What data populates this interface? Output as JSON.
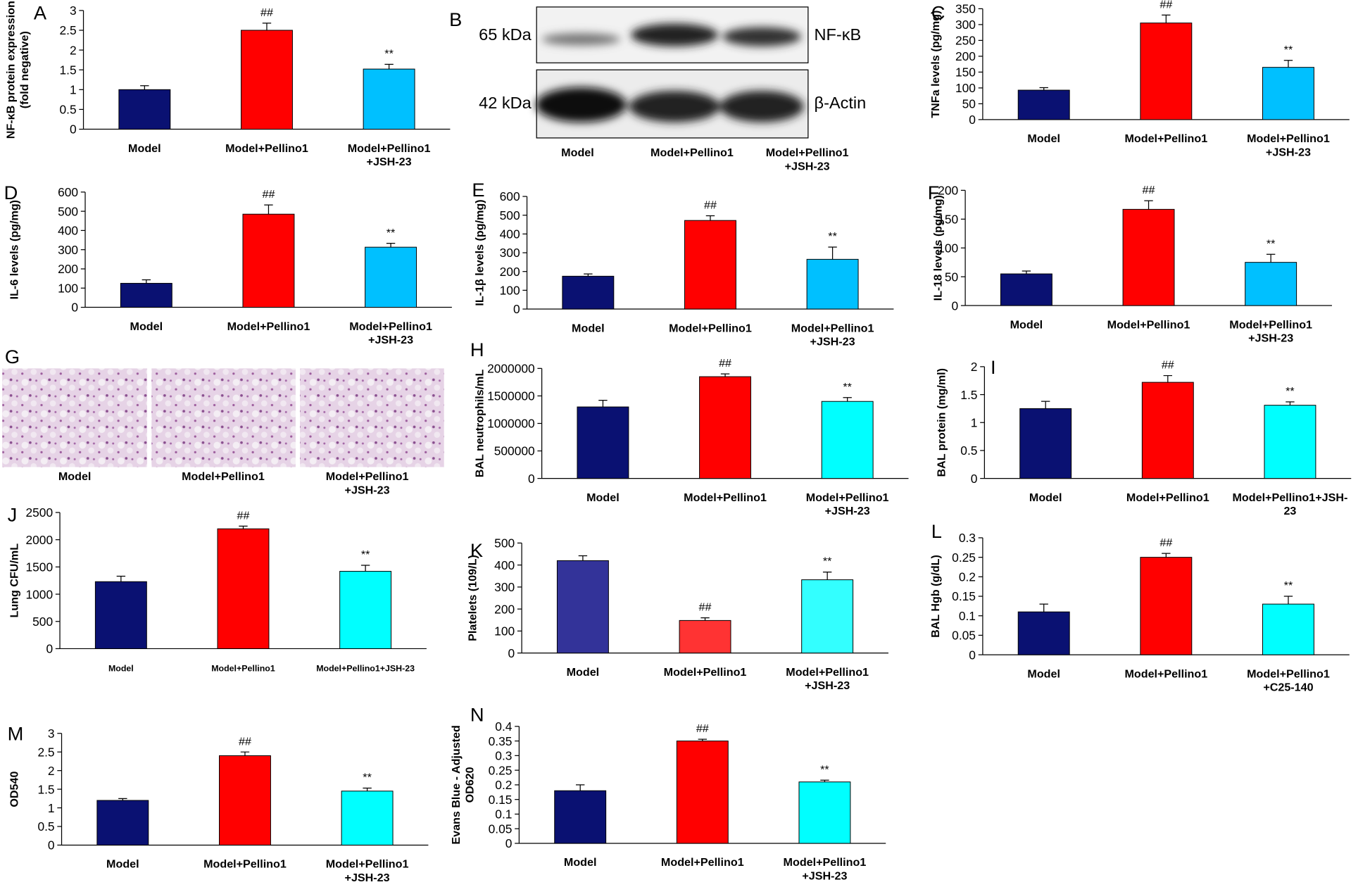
{
  "chart_data": [
    {
      "type": "bar",
      "panel": "A",
      "ylabel": "NF-κB protein expression\n(fold negative)",
      "categories": [
        "Model",
        "Model+Pellino1",
        "Model+Pellino1\n+JSH-23"
      ],
      "values": [
        1.0,
        2.5,
        1.52
      ],
      "errors": [
        0.1,
        0.18,
        0.12
      ],
      "annotations": [
        null,
        "##",
        "**"
      ],
      "colors": [
        "#0a1172",
        "#ff0000",
        "#00c0ff"
      ],
      "ylim": [
        0,
        3
      ],
      "yticks": [
        0,
        0.5,
        1,
        1.5,
        2,
        2.5,
        3
      ]
    },
    {
      "type": "bar",
      "panel": "C",
      "ylabel": "TNFa levels (pg/mg)",
      "categories": [
        "Model",
        "Model+Pellino1",
        "Model+Pellino1\n+JSH-23"
      ],
      "values": [
        93,
        305,
        165
      ],
      "errors": [
        8,
        25,
        22
      ],
      "annotations": [
        null,
        "##",
        "**"
      ],
      "colors": [
        "#0a1172",
        "#ff0000",
        "#00c0ff"
      ],
      "ylim": [
        0,
        350
      ],
      "yticks": [
        0,
        50,
        100,
        150,
        200,
        250,
        300,
        350
      ]
    },
    {
      "type": "bar",
      "panel": "D",
      "ylabel": "IL-6 levels  (pg/mg)",
      "categories": [
        "Model",
        "Model+Pellino1",
        "Model+Pellino1\n+JSH-23"
      ],
      "values": [
        125,
        485,
        313
      ],
      "errors": [
        18,
        48,
        20
      ],
      "annotations": [
        null,
        "##",
        "**"
      ],
      "colors": [
        "#0a1172",
        "#ff0000",
        "#00c0ff"
      ],
      "ylim": [
        0,
        600
      ],
      "yticks": [
        0,
        100,
        200,
        300,
        400,
        500,
        600
      ]
    },
    {
      "type": "bar",
      "panel": "E",
      "ylabel": "IL-1β levels (pg/mg)",
      "categories": [
        "Model",
        "Model+Pellino1",
        "Model+Pellino1\n+JSH-23"
      ],
      "values": [
        175,
        472,
        265
      ],
      "errors": [
        12,
        25,
        65
      ],
      "annotations": [
        null,
        "##",
        "**"
      ],
      "colors": [
        "#0a1172",
        "#ff0000",
        "#00c0ff"
      ],
      "ylim": [
        0,
        600
      ],
      "yticks": [
        0,
        100,
        200,
        300,
        400,
        500,
        600
      ]
    },
    {
      "type": "bar",
      "panel": "F",
      "ylabel": "IL-18 levels (pg/mg)",
      "categories": [
        "Model",
        "Model+Pellino1",
        "Model+Pellino1\n+JSH-23"
      ],
      "values": [
        55,
        167,
        75
      ],
      "errors": [
        5,
        15,
        14
      ],
      "annotations": [
        null,
        "##",
        "**"
      ],
      "colors": [
        "#0a1172",
        "#ff0000",
        "#00c0ff"
      ],
      "ylim": [
        0,
        200
      ],
      "yticks": [
        0,
        50,
        100,
        150,
        200
      ]
    },
    {
      "type": "bar",
      "panel": "H",
      "ylabel": "BAL neutrophils/mL",
      "categories": [
        "Model",
        "Model+Pellino1",
        "Model+Pellino1\n+JSH-23"
      ],
      "values": [
        1300000,
        1850000,
        1400000
      ],
      "errors": [
        120000,
        50000,
        70000
      ],
      "annotations": [
        null,
        "##",
        "**"
      ],
      "colors": [
        "#0a1172",
        "#ff0000",
        "#00ffff"
      ],
      "ylim": [
        0,
        2000000
      ],
      "yticks": [
        0,
        500000,
        1000000,
        1500000,
        2000000
      ]
    },
    {
      "type": "bar",
      "panel": "I",
      "ylabel": "BAL protein (mg/ml)",
      "categories": [
        "Model",
        "Model+Pellino1",
        "Model+Pellino1+JSH-\n23"
      ],
      "values": [
        1.25,
        1.72,
        1.31
      ],
      "errors": [
        0.13,
        0.12,
        0.06
      ],
      "annotations": [
        null,
        "##",
        "**"
      ],
      "colors": [
        "#0a1172",
        "#ff0000",
        "#00ffff"
      ],
      "ylim": [
        0,
        2
      ],
      "yticks": [
        0,
        0.5,
        1,
        1.5,
        2
      ]
    },
    {
      "type": "bar",
      "panel": "J",
      "ylabel": "Lung CFU/mL",
      "categories": [
        "Model",
        "Model+Pellino1",
        "Model+Pellino1+JSH-23"
      ],
      "values": [
        1230,
        2200,
        1420
      ],
      "errors": [
        100,
        50,
        110
      ],
      "annotations": [
        null,
        "##",
        "**"
      ],
      "colors": [
        "#0a1172",
        "#ff0000",
        "#00ffff"
      ],
      "ylim": [
        0,
        2500
      ],
      "yticks": [
        0,
        500,
        1000,
        1500,
        2000,
        2500
      ]
    },
    {
      "type": "bar",
      "panel": "K",
      "ylabel": "Platelets (109/L)",
      "categories": [
        "Model",
        "Model+Pellino1",
        "Model+Pellino1\n+JSH-23"
      ],
      "values": [
        420,
        148,
        333
      ],
      "errors": [
        22,
        12,
        35
      ],
      "annotations": [
        null,
        "##",
        "**"
      ],
      "colors": [
        "#333399",
        "#ff3333",
        "#33ffff"
      ],
      "ylim": [
        0,
        500
      ],
      "yticks": [
        0,
        100,
        200,
        300,
        400,
        500
      ]
    },
    {
      "type": "bar",
      "panel": "L",
      "ylabel": "BAL Hgb (g/dL)",
      "categories": [
        "Model",
        "Model+Pellino1",
        "Model+Pellino1\n+C25-140"
      ],
      "values": [
        0.11,
        0.25,
        0.13
      ],
      "errors": [
        0.02,
        0.01,
        0.02
      ],
      "annotations": [
        null,
        "##",
        "**"
      ],
      "colors": [
        "#0a1172",
        "#ff0000",
        "#00ffff"
      ],
      "ylim": [
        0,
        0.3
      ],
      "yticks": [
        0,
        0.05,
        0.1,
        0.15,
        0.2,
        0.25,
        0.3
      ]
    },
    {
      "type": "bar",
      "panel": "M",
      "ylabel": "OD540",
      "categories": [
        "Model",
        "Model+Pellino1",
        "Model+Pellino1\n+JSH-23"
      ],
      "values": [
        1.2,
        2.4,
        1.45
      ],
      "errors": [
        0.05,
        0.1,
        0.08
      ],
      "annotations": [
        null,
        "##",
        "**"
      ],
      "colors": [
        "#0a1172",
        "#ff0000",
        "#00ffff"
      ],
      "ylim": [
        0,
        3
      ],
      "yticks": [
        0,
        0.5,
        1,
        1.5,
        2,
        2.5,
        3
      ]
    },
    {
      "type": "bar",
      "panel": "N",
      "ylabel": "Evans Blue - Adjusted\nOD620",
      "categories": [
        "Model",
        "Model+Pellino1",
        "Model+Pellino1\n+JSH-23"
      ],
      "values": [
        0.18,
        0.35,
        0.21
      ],
      "errors": [
        0.02,
        0.006,
        0.006
      ],
      "annotations": [
        null,
        "##",
        "**"
      ],
      "colors": [
        "#0a1172",
        "#ff0000",
        "#00ffff"
      ],
      "ylim": [
        0,
        0.4
      ],
      "yticks": [
        0,
        0.05,
        0.1,
        0.15,
        0.2,
        0.25,
        0.3,
        0.35,
        0.4
      ]
    }
  ],
  "blot": {
    "panel": "B",
    "bands": [
      {
        "size": "65 kDa",
        "protein": "NF-κB"
      },
      {
        "size": "42 kDa",
        "protein": "β-Actin"
      }
    ],
    "categories": [
      "Model",
      "Model+Pellino1",
      "Model+Pellino1\n+JSH-23"
    ]
  },
  "histology": {
    "panel": "G",
    "categories": [
      "Model",
      "Model+Pellino1",
      "Model+Pellino1\n+JSH-23"
    ]
  }
}
